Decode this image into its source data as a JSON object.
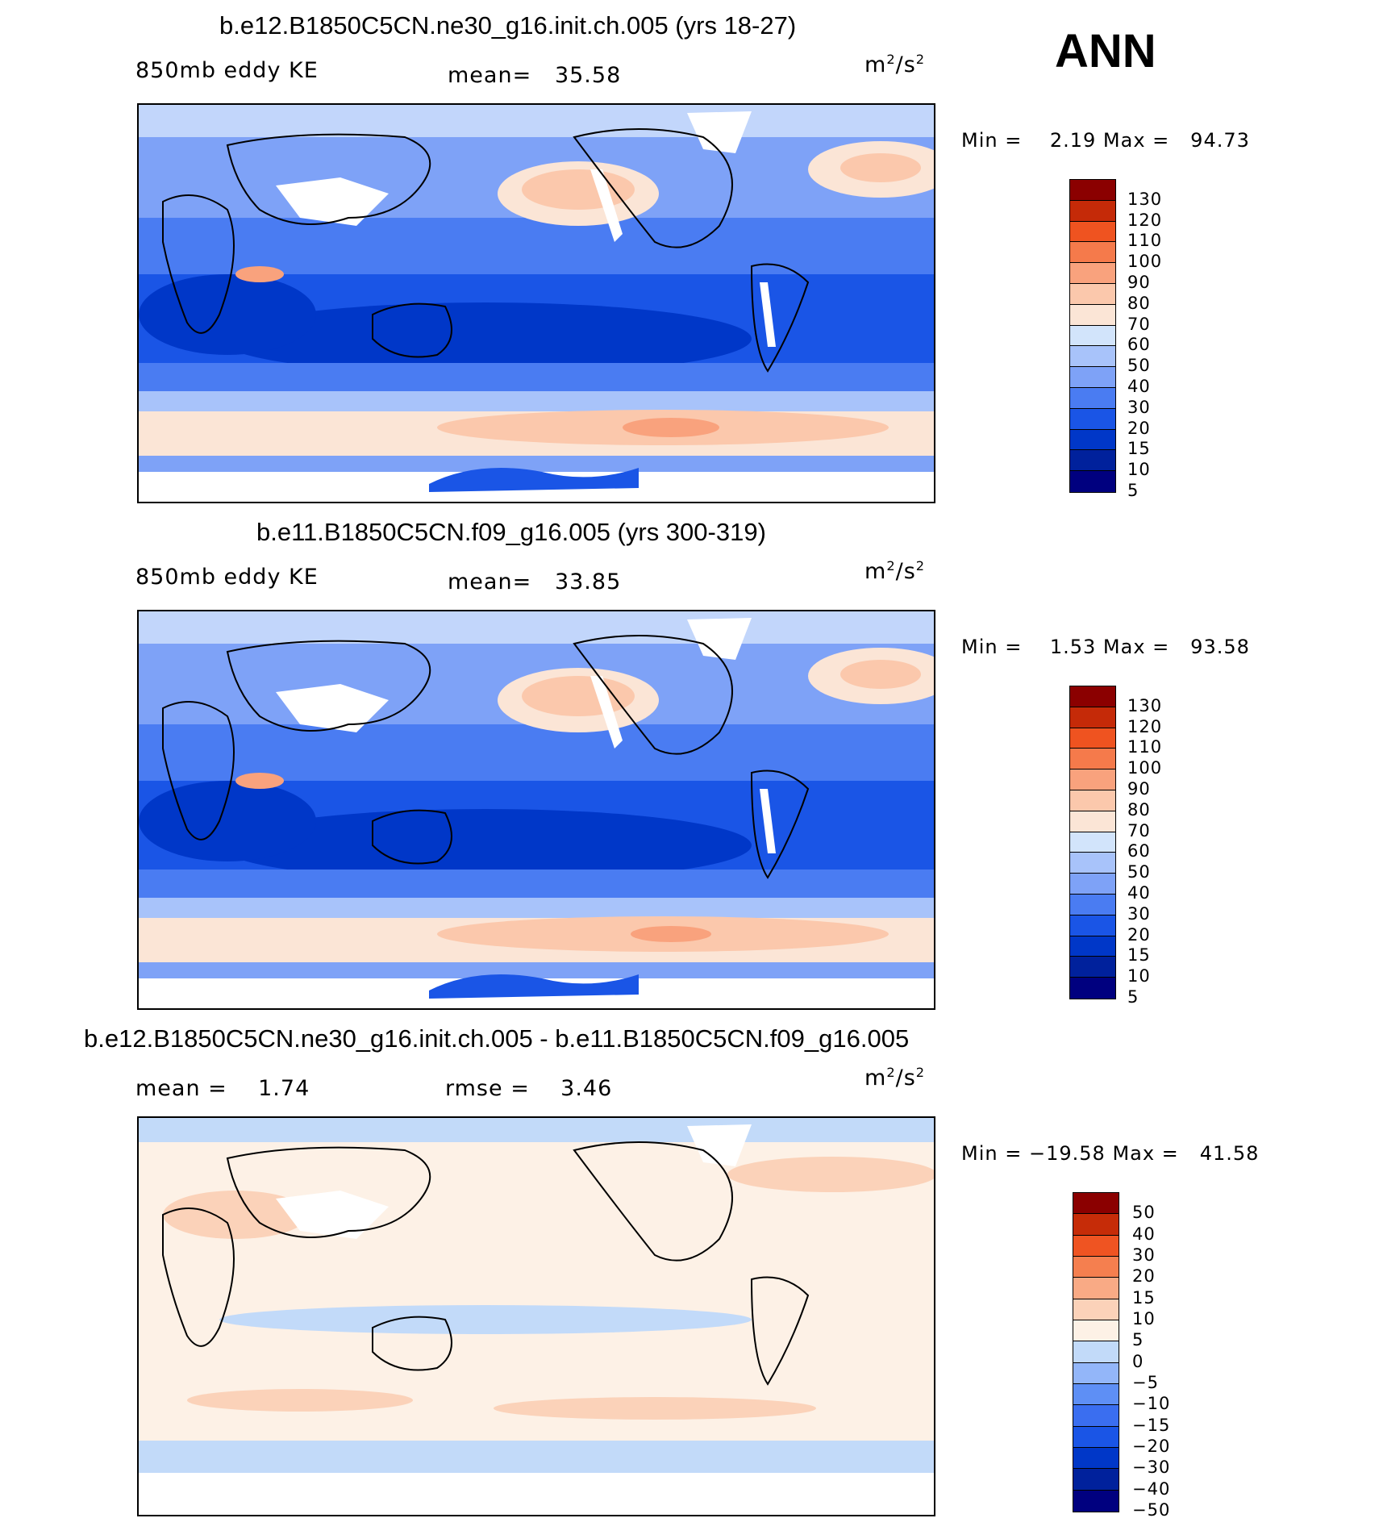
{
  "season": "ANN",
  "chart_data": [
    {
      "type": "heatmap",
      "title": "b.e12.B1850C5CN.ne30_g16.init.ch.005 (yrs 18-27)",
      "variable": "850mb eddy KE",
      "mean_label": "mean=",
      "mean": "35.58",
      "units_base": "m",
      "units_exp": "2",
      "units_mid": "/s",
      "units_exp2": "2",
      "min_label": "Min =",
      "min": "2.19",
      "max_label": "Max =",
      "max": "94.73",
      "levels": [
        "5",
        "10",
        "15",
        "20",
        "30",
        "40",
        "50",
        "60",
        "70",
        "80",
        "90",
        "100",
        "110",
        "120",
        "130"
      ],
      "colors": [
        "#00007f",
        "#00219c",
        "#0037c8",
        "#1a55e6",
        "#4a7cf2",
        "#7ea2f7",
        "#a8c3fa",
        "#d2e4fb",
        "#fbe5d6",
        "#fbc8ac",
        "#f9a27d",
        "#f57a4b",
        "#ef5320",
        "#c52a08",
        "#8b0000"
      ]
    },
    {
      "type": "heatmap",
      "title": "b.e11.B1850C5CN.f09_g16.005 (yrs 300-319)",
      "variable": "850mb eddy KE",
      "mean_label": "mean=",
      "mean": "33.85",
      "units_base": "m",
      "units_exp": "2",
      "units_mid": "/s",
      "units_exp2": "2",
      "min_label": "Min =",
      "min": "1.53",
      "max_label": "Max =",
      "max": "93.58",
      "levels": [
        "5",
        "10",
        "15",
        "20",
        "30",
        "40",
        "50",
        "60",
        "70",
        "80",
        "90",
        "100",
        "110",
        "120",
        "130"
      ],
      "colors": [
        "#00007f",
        "#00219c",
        "#0037c8",
        "#1a55e6",
        "#4a7cf2",
        "#7ea2f7",
        "#a8c3fa",
        "#d2e4fb",
        "#fbe5d6",
        "#fbc8ac",
        "#f9a27d",
        "#f57a4b",
        "#ef5320",
        "#c52a08",
        "#8b0000"
      ]
    },
    {
      "type": "heatmap",
      "title": "b.e12.B1850C5CN.ne30_g16.init.ch.005 - b.e11.B1850C5CN.f09_g16.005",
      "mean_label": "mean =",
      "mean": "1.74",
      "rmse_label": "rmse =",
      "rmse": "3.46",
      "units_base": "m",
      "units_exp": "2",
      "units_mid": "/s",
      "units_exp2": "2",
      "min_label": "Min =",
      "min": "−19.58",
      "max_label": "Max =",
      "max": "41.58",
      "levels": [
        "−50",
        "−40",
        "−30",
        "−20",
        "−15",
        "−10",
        "−5",
        "0",
        "5",
        "10",
        "15",
        "20",
        "30",
        "40",
        "50"
      ],
      "colors": [
        "#00007f",
        "#00219c",
        "#0037c8",
        "#1a55e6",
        "#3a6ef0",
        "#5e8ff5",
        "#93b6f9",
        "#c2daf9",
        "#fdf1e6",
        "#fbd2b9",
        "#f9aa85",
        "#f57f4f",
        "#ef5422",
        "#c62c08",
        "#8b0000"
      ]
    }
  ]
}
